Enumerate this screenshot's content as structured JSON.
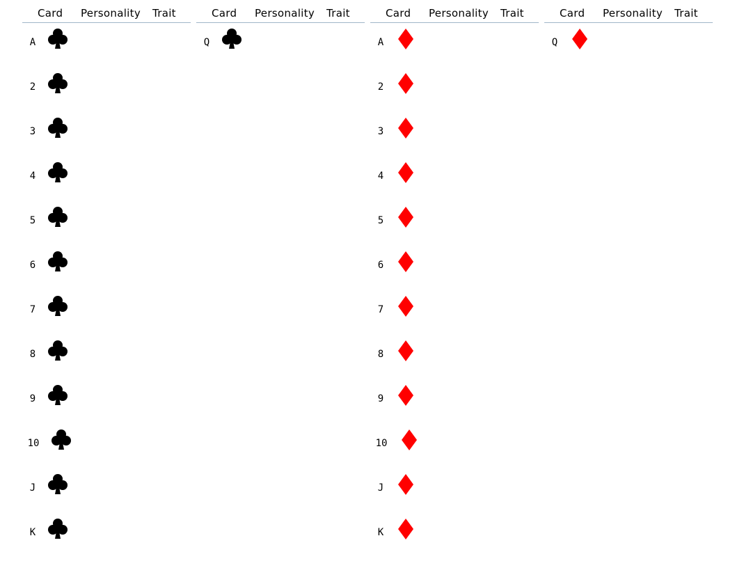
{
  "headers": {
    "card": "Card",
    "personality": "Personality",
    "trait": "Trait"
  },
  "colors": {
    "clubs": "#000000",
    "diamonds": "#ff0000",
    "rule": "#9fb6c8"
  },
  "columns": [
    {
      "suit": "club-icon",
      "ranks": [
        "A",
        "2",
        "3",
        "4",
        "5",
        "6",
        "7",
        "8",
        "9",
        "10",
        "J",
        "K"
      ]
    },
    {
      "suit": "club-icon",
      "ranks": [
        "Q"
      ]
    },
    {
      "suit": "diamond-icon",
      "ranks": [
        "A",
        "2",
        "3",
        "4",
        "5",
        "6",
        "7",
        "8",
        "9",
        "10",
        "J",
        "K"
      ]
    },
    {
      "suit": "diamond-icon",
      "ranks": [
        "Q"
      ]
    }
  ]
}
